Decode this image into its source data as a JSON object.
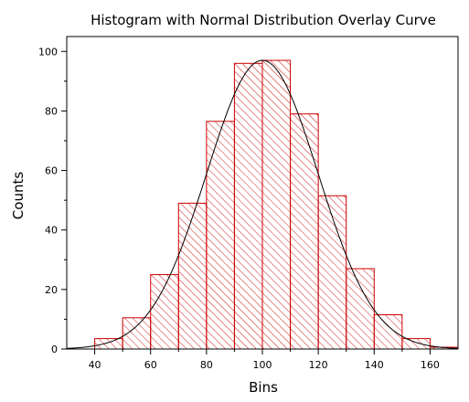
{
  "chart_data": {
    "type": "bar",
    "title": "Histogram with Normal Distribution Overlay Curve",
    "xlabel": "Bins",
    "ylabel": "Counts",
    "xlim": [
      30,
      170
    ],
    "ylim": [
      0,
      105
    ],
    "x_ticks": [
      40,
      60,
      80,
      100,
      120,
      140,
      160
    ],
    "y_ticks": [
      0,
      20,
      40,
      60,
      80,
      100
    ],
    "bin_width": 10,
    "bins": [
      {
        "start": 40,
        "end": 50,
        "count": 3.5
      },
      {
        "start": 50,
        "end": 60,
        "count": 10.5
      },
      {
        "start": 60,
        "end": 70,
        "count": 25
      },
      {
        "start": 70,
        "end": 80,
        "count": 49
      },
      {
        "start": 80,
        "end": 90,
        "count": 76.5
      },
      {
        "start": 90,
        "end": 100,
        "count": 96
      },
      {
        "start": 100,
        "end": 110,
        "count": 97
      },
      {
        "start": 110,
        "end": 120,
        "count": 79
      },
      {
        "start": 120,
        "end": 130,
        "count": 51.5
      },
      {
        "start": 130,
        "end": 140,
        "count": 27
      },
      {
        "start": 140,
        "end": 150,
        "count": 11.5
      },
      {
        "start": 150,
        "end": 160,
        "count": 3.5
      },
      {
        "start": 160,
        "end": 170,
        "count": 0.6
      }
    ],
    "overlay_curve": {
      "type": "normal",
      "mean": 100,
      "sd": 20,
      "peak": 97
    },
    "bar_color": "#cc0000",
    "curve_color": "#000000",
    "grid": false
  }
}
